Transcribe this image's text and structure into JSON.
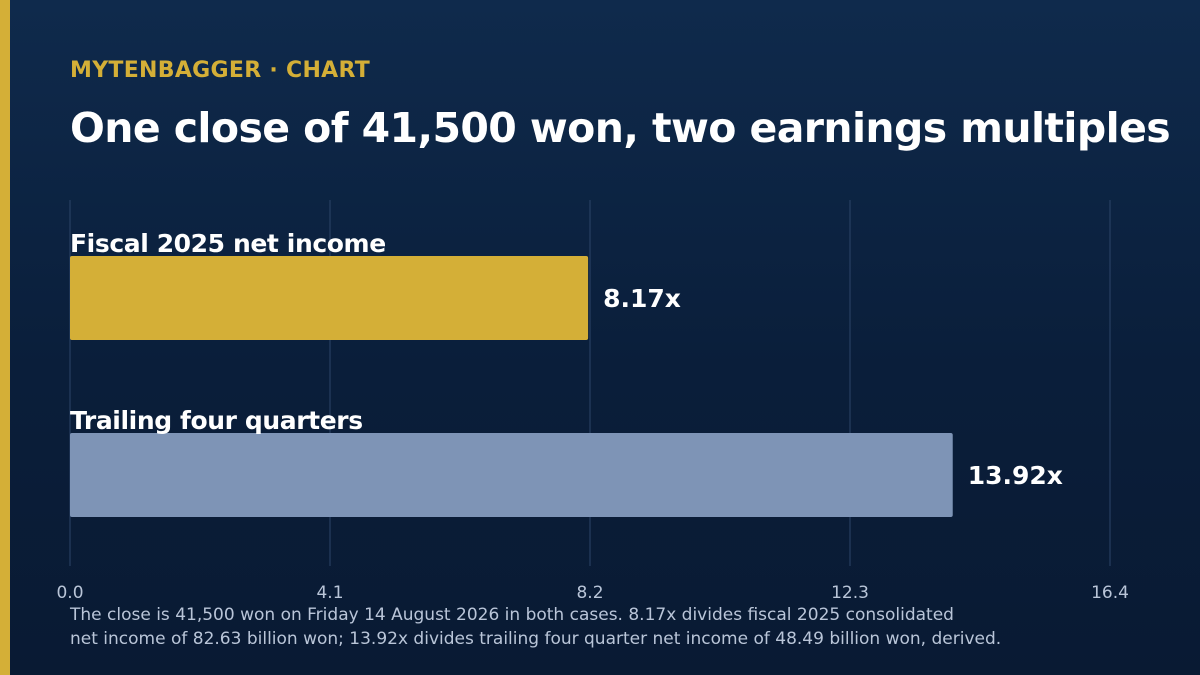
{
  "header": {
    "kicker": "MYTENBAGGER · CHART",
    "title": "One close of 41,500 won, two earnings multiples"
  },
  "colors": {
    "accent": "#d4af37",
    "series_fiscal": "#d4af37",
    "series_trailing": "#7e94b6",
    "grid": "#2c4468",
    "tick_label": "#b9c5d8"
  },
  "chart_data": {
    "type": "bar",
    "orientation": "horizontal",
    "categories": [
      "Fiscal 2025 net income",
      "Trailing four quarters"
    ],
    "values": [
      8.17,
      13.92
    ],
    "value_labels": [
      "8.17x",
      "13.92x"
    ],
    "xlim": [
      0,
      16.4
    ],
    "x_ticks": [
      0,
      4.1,
      8.2,
      12.3,
      16.4
    ],
    "x_tick_labels": [
      "0.0",
      "4.1",
      "8.2",
      "12.3",
      "16.4"
    ],
    "grid": true,
    "title": "One close of 41,500 won, two earnings multiples",
    "xlabel": "",
    "ylabel": ""
  },
  "footnote": {
    "line1": "The close is 41,500 won on Friday 14 August 2026 in both cases. 8.17x divides fiscal 2025 consolidated",
    "line2": "net income of 82.63 billion won; 13.92x divides trailing four quarter net income of 48.49 billion won, derived."
  }
}
